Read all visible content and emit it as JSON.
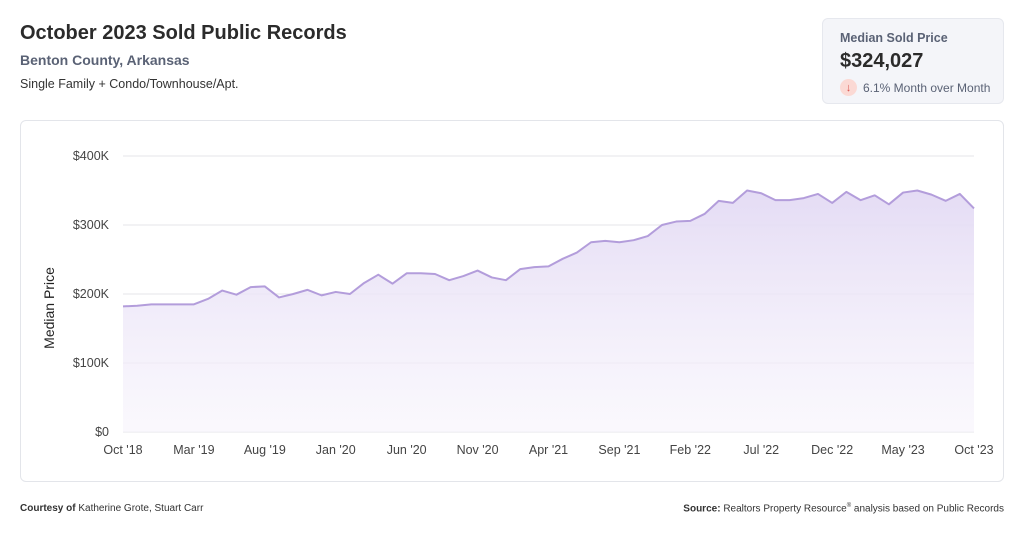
{
  "header": {
    "title": "October 2023 Sold Public Records",
    "subtitle": "Benton County, Arkansas",
    "property_types": "Single Family + Condo/Townhouse/Apt."
  },
  "stat": {
    "label": "Median Sold Price",
    "value": "$324,027",
    "change": "6.1% Month over Month",
    "direction_icon": "arrow-down-icon",
    "down_color": "#d9534f"
  },
  "footer": {
    "courtesy_label": "Courtesy of",
    "courtesy_names": "Katherine Grote, Stuart Carr",
    "source_label": "Source:",
    "source_text_a": "Realtors Property Resource",
    "source_sup": "®",
    "source_text_b": " analysis based on Public Records"
  },
  "chart_data": {
    "type": "area",
    "ylabel": "Median Price",
    "xlabel": "",
    "ylim": [
      0,
      400000
    ],
    "yticks": [
      0,
      100000,
      200000,
      300000,
      400000
    ],
    "ytick_labels": [
      "$0",
      "$100K",
      "$200K",
      "$300K",
      "$400K"
    ],
    "xtick_labels": [
      "Oct '18",
      "Mar '19",
      "Aug '19",
      "Jan '20",
      "Jun '20",
      "Nov '20",
      "Apr '21",
      "Sep '21",
      "Feb '22",
      "Jul '22",
      "Dec '22",
      "May '23",
      "Oct '23"
    ],
    "xtick_every": 5,
    "grid": true,
    "line_color": "#b39ddb",
    "fill_color": "#ede7f6",
    "series": [
      {
        "values": [
          182000,
          183000,
          185000,
          185000,
          185000,
          185000,
          193000,
          205000,
          199000,
          210000,
          211000,
          195000,
          200000,
          206000,
          198000,
          203000,
          200000,
          216000,
          228000,
          215000,
          230000,
          230000,
          229000,
          220000,
          226000,
          234000,
          224000,
          220000,
          236000,
          239000,
          240000,
          251000,
          260000,
          275000,
          277000,
          275000,
          278000,
          284000,
          300000,
          305000,
          306000,
          316000,
          335000,
          332000,
          350000,
          346000,
          336000,
          336000,
          339000,
          345000,
          332000,
          348000,
          336000,
          343000,
          330000,
          347000,
          350000,
          344000,
          335000,
          345000,
          324027
        ]
      }
    ]
  }
}
